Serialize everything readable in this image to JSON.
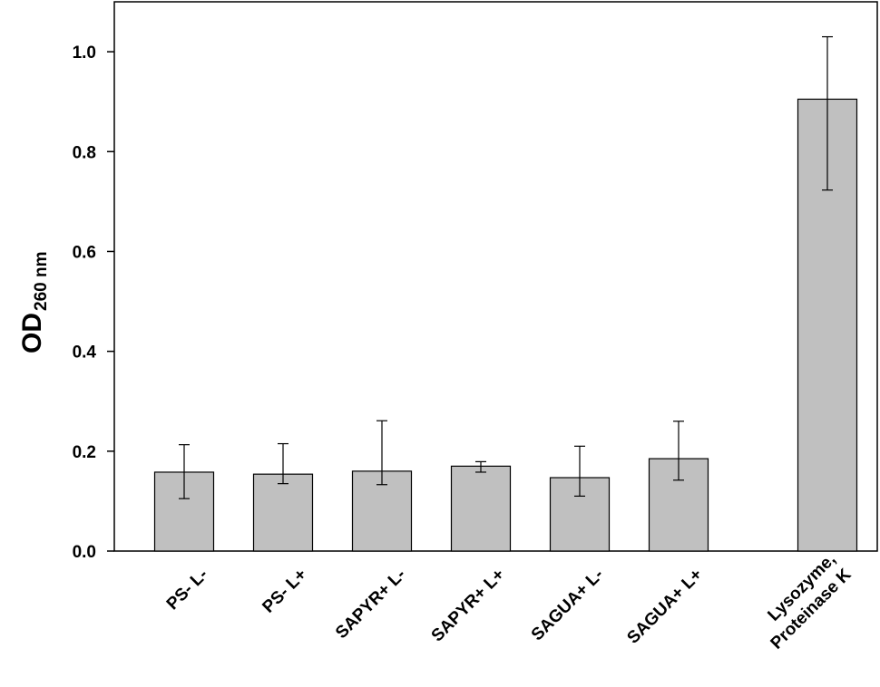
{
  "chart_data": {
    "type": "bar",
    "ylabel": {
      "main": "OD",
      "sub": "260 nm"
    },
    "ylim": [
      0,
      1.1
    ],
    "yticks": [
      "0.0",
      "0.2",
      "0.4",
      "0.6",
      "0.8",
      "1.0"
    ],
    "ytick_values": [
      0,
      0.2,
      0.4,
      0.6,
      0.8,
      1.0
    ],
    "categories": [
      {
        "lines": [
          "PS- L-"
        ]
      },
      {
        "lines": [
          "PS- L+"
        ]
      },
      {
        "lines": [
          "SAPYR+ L-"
        ]
      },
      {
        "lines": [
          "SAPYR+ L+"
        ]
      },
      {
        "lines": [
          "SAGUA+ L-"
        ]
      },
      {
        "lines": [
          "SAGUA+ L+"
        ]
      },
      {
        "lines": [
          "Lysozyme,",
          "Proteinase K"
        ]
      }
    ],
    "values": [
      0.158,
      0.154,
      0.16,
      0.17,
      0.147,
      0.185,
      0.905
    ],
    "error_low": [
      0.105,
      0.135,
      0.133,
      0.158,
      0.11,
      0.142,
      0.723
    ],
    "error_high": [
      0.213,
      0.215,
      0.261,
      0.179,
      0.21,
      0.26,
      1.03
    ],
    "bar_color": "#c0c0c0",
    "grid": false,
    "legend": "none"
  }
}
